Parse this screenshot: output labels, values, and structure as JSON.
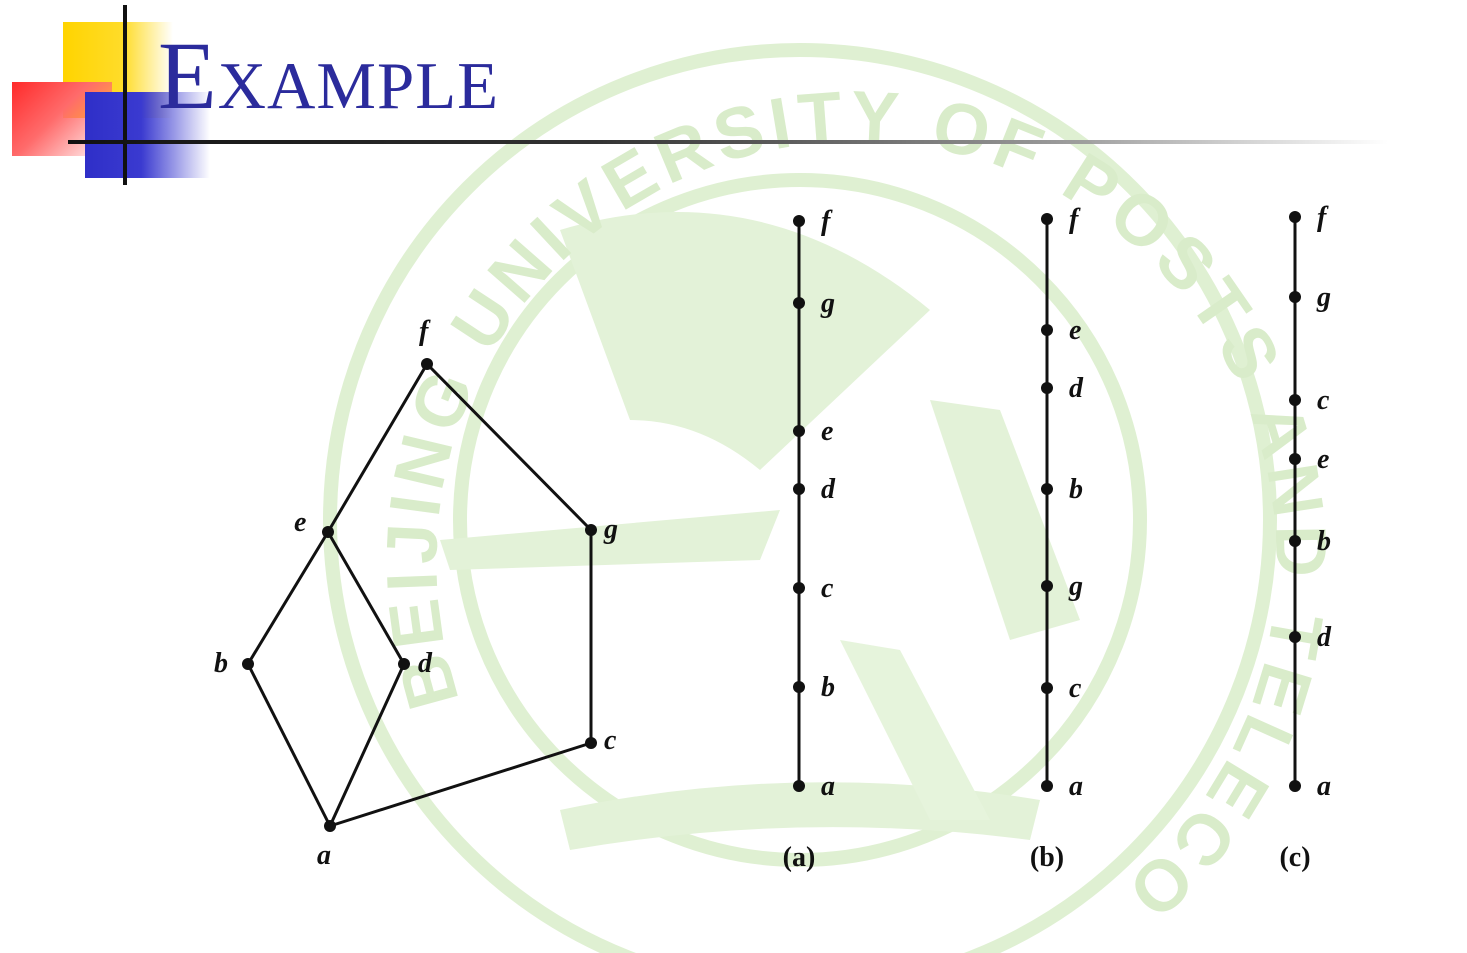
{
  "slide": {
    "title": "Example"
  },
  "watermark": {
    "ring_text": "BEIJING UNIVERSITY OF POSTS AND TELECOMMUNICATIONS",
    "color": "#d6ecc8"
  },
  "accent_colors": {
    "title": "#2b2b9c",
    "yellow": "#ffd400",
    "blue": "#2f2fc8",
    "red": "#ff2a2a"
  },
  "hasse": {
    "nodes": [
      {
        "id": "f",
        "label": "f"
      },
      {
        "id": "e",
        "label": "e"
      },
      {
        "id": "g",
        "label": "g"
      },
      {
        "id": "b",
        "label": "b"
      },
      {
        "id": "d",
        "label": "d"
      },
      {
        "id": "c",
        "label": "c"
      },
      {
        "id": "a",
        "label": "a"
      }
    ],
    "edges": [
      [
        "f",
        "e"
      ],
      [
        "f",
        "g"
      ],
      [
        "e",
        "b"
      ],
      [
        "e",
        "d"
      ],
      [
        "b",
        "a"
      ],
      [
        "d",
        "a"
      ],
      [
        "g",
        "c"
      ],
      [
        "c",
        "a"
      ]
    ]
  },
  "chains": [
    {
      "caption": "(a)",
      "order": [
        "f",
        "g",
        "e",
        "d",
        "c",
        "b",
        "a"
      ]
    },
    {
      "caption": "(b)",
      "order": [
        "f",
        "e",
        "d",
        "b",
        "g",
        "c",
        "a"
      ]
    },
    {
      "caption": "(c)",
      "order": [
        "f",
        "g",
        "c",
        "e",
        "b",
        "d",
        "a"
      ]
    }
  ]
}
